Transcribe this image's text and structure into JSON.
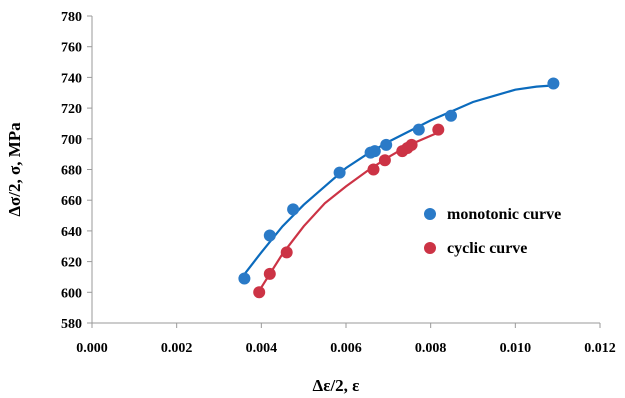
{
  "chart_data": {
    "type": "scatter",
    "title": "",
    "xlabel": "Δε/2, ε",
    "ylabel": "Δσ/2, σ, MPa",
    "xlim": [
      0.0,
      0.012
    ],
    "ylim": [
      580,
      780
    ],
    "x_ticks": [
      0.0,
      0.002,
      0.004,
      0.006,
      0.008,
      0.01,
      0.012
    ],
    "x_tick_labels": [
      "0.000",
      "0.002",
      "0.004",
      "0.006",
      "0.008",
      "0.010",
      "0.012"
    ],
    "y_ticks": [
      580,
      600,
      620,
      640,
      660,
      680,
      700,
      720,
      740,
      760,
      780
    ],
    "y_tick_labels": [
      "580",
      "600",
      "620",
      "640",
      "660",
      "680",
      "700",
      "720",
      "740",
      "760",
      "780"
    ],
    "grid": false,
    "legend_position": "right",
    "series": [
      {
        "name": "monotonic curve",
        "color": "#2a7ac7",
        "line_color": "#0b6bbd",
        "points": [
          [
            0.0036,
            609
          ],
          [
            0.0042,
            637
          ],
          [
            0.00475,
            654
          ],
          [
            0.00585,
            678
          ],
          [
            0.00658,
            691
          ],
          [
            0.00668,
            692
          ],
          [
            0.00695,
            696
          ],
          [
            0.00772,
            706
          ],
          [
            0.00848,
            715
          ],
          [
            0.0109,
            736
          ]
        ],
        "trend": [
          [
            0.00355,
            610
          ],
          [
            0.004,
            626
          ],
          [
            0.0045,
            643
          ],
          [
            0.005,
            657
          ],
          [
            0.0055,
            669
          ],
          [
            0.006,
            681
          ],
          [
            0.0065,
            690
          ],
          [
            0.007,
            698
          ],
          [
            0.0075,
            705
          ],
          [
            0.008,
            712
          ],
          [
            0.0085,
            718
          ],
          [
            0.009,
            724
          ],
          [
            0.0095,
            728
          ],
          [
            0.01,
            732
          ],
          [
            0.0105,
            734
          ],
          [
            0.011,
            735
          ]
        ]
      },
      {
        "name": "cyclic curve",
        "color": "#cc3345",
        "line_color": "#cc3345",
        "points": [
          [
            0.00395,
            600
          ],
          [
            0.0042,
            612
          ],
          [
            0.0046,
            626
          ],
          [
            0.00665,
            680
          ],
          [
            0.00692,
            686
          ],
          [
            0.00733,
            692
          ],
          [
            0.00745,
            694
          ],
          [
            0.00755,
            696
          ],
          [
            0.00818,
            706
          ]
        ],
        "trend": [
          [
            0.00395,
            601
          ],
          [
            0.0042,
            612
          ],
          [
            0.0045,
            625
          ],
          [
            0.005,
            643
          ],
          [
            0.0055,
            658
          ],
          [
            0.006,
            669
          ],
          [
            0.0065,
            679
          ],
          [
            0.007,
            688
          ],
          [
            0.0075,
            696
          ],
          [
            0.008,
            702
          ],
          [
            0.00825,
            705
          ]
        ]
      }
    ]
  }
}
